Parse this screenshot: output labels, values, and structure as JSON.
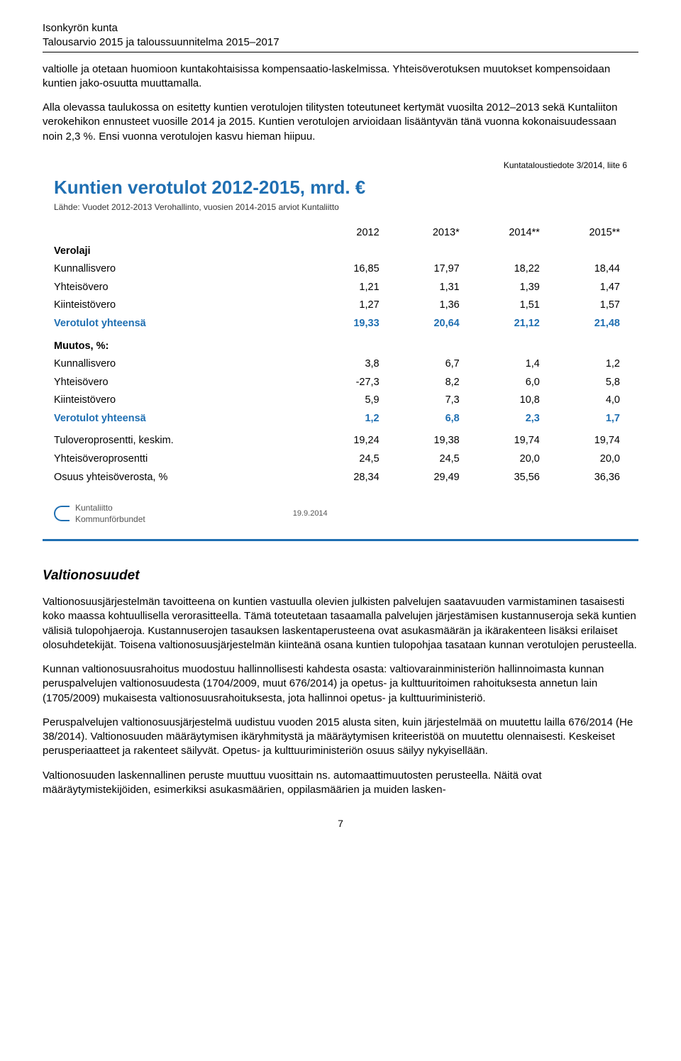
{
  "header": {
    "org": "Isonkyrön kunta",
    "doc": "Talousarvio 2015 ja taloussuunnitelma 2015–2017"
  },
  "paragraphs": {
    "p1": "valtiolle ja otetaan huomioon kuntakohtaisissa kompensaatio-laskelmissa. Yhteisöverotuksen muutokset kompensoidaan kuntien jako-osuutta muuttamalla.",
    "p2": "Alla olevassa taulukossa on esitetty kuntien verotulojen tilitysten toteutuneet kertymät vuosilta 2012–2013 sekä Kuntaliiton verokehikon ennusteet vuosille 2014 ja 2015. Kuntien verotulojen arvioidaan lisääntyvän tänä vuonna kokonaisuudessaan noin 2,3 %. Ensi vuonna verotulojen kasvu hieman hiipuu."
  },
  "table": {
    "liite": "Kuntataloustiedote 3/2014, liite 6",
    "title": "Kuntien verotulot 2012-2015, mrd. €",
    "subtitle": "Lähde: Vuodet 2012-2013 Verohallinto, vuosien 2014-2015 arviot Kuntaliitto",
    "title_color": "#1f6fb2",
    "accent_color": "#1f6fb2",
    "columns": [
      "",
      "2012",
      "2013*",
      "2014**",
      "2015**"
    ],
    "col_widths": [
      "44%",
      "14%",
      "14%",
      "14%",
      "14%"
    ],
    "rows": [
      {
        "cells": [
          "Verolaji",
          "",
          "",
          "",
          ""
        ],
        "style": "bold-black"
      },
      {
        "cells": [
          "Kunnallisvero",
          "16,85",
          "17,97",
          "18,22",
          "18,44"
        ]
      },
      {
        "cells": [
          "Yhteisövero",
          "1,21",
          "1,31",
          "1,39",
          "1,47"
        ]
      },
      {
        "cells": [
          "Kiinteistövero",
          "1,27",
          "1,36",
          "1,51",
          "1,57"
        ]
      },
      {
        "cells": [
          "Verotulot yhteensä",
          "19,33",
          "20,64",
          "21,12",
          "21,48"
        ],
        "style": "bold-blue"
      },
      {
        "cells": [
          "",
          "",
          "",
          "",
          ""
        ]
      },
      {
        "cells": [
          "Muutos, %:",
          "",
          "",
          "",
          ""
        ],
        "style": "bold-black"
      },
      {
        "cells": [
          "Kunnallisvero",
          "3,8",
          "6,7",
          "1,4",
          "1,2"
        ]
      },
      {
        "cells": [
          "Yhteisövero",
          "-27,3",
          "8,2",
          "6,0",
          "5,8"
        ]
      },
      {
        "cells": [
          "Kiinteistövero",
          "5,9",
          "7,3",
          "10,8",
          "4,0"
        ]
      },
      {
        "cells": [
          "Verotulot yhteensä",
          "1,2",
          "6,8",
          "2,3",
          "1,7"
        ],
        "style": "bold-blue"
      },
      {
        "cells": [
          "",
          "",
          "",
          "",
          ""
        ]
      },
      {
        "cells": [
          "Tuloveroprosentti, keskim.",
          "19,24",
          "19,38",
          "19,74",
          "19,74"
        ]
      },
      {
        "cells": [
          "Yhteisöveroprosentti",
          "24,5",
          "24,5",
          "20,0",
          "20,0"
        ]
      },
      {
        "cells": [
          "Osuus yhteisöverosta, %",
          "28,34",
          "29,49",
          "35,56",
          "36,36"
        ]
      }
    ],
    "logo1": "Kuntaliitto",
    "logo2": "Kommunförbundet",
    "date": "19.9.2014"
  },
  "section_title": "Valtionosuudet",
  "body": {
    "b1": "Valtionosuusjärjestelmän tavoitteena on kuntien vastuulla olevien julkisten palvelujen saatavuuden varmistaminen tasaisesti koko maassa kohtuullisella verorasitteella. Tämä toteutetaan tasaamalla palvelujen järjestämisen kustannuseroja sekä kuntien välisiä tulopohjaeroja. Kustannuserojen tasauksen laskentaperusteena ovat asukasmäärän ja ikärakenteen lisäksi erilaiset olosuhdetekijät. Toisena valtionosuusjärjestelmän kiinteänä osana kuntien tulopohjaa tasataan kunnan verotulojen perusteella.",
    "b2": "Kunnan valtionosuusrahoitus muodostuu hallinnollisesti kahdesta osasta: valtiovarainministeriön hallinnoimasta kunnan peruspalvelujen valtionosuudesta (1704/2009, muut 676/2014) ja opetus- ja kulttuuritoimen rahoituksesta annetun lain (1705/2009) mukaisesta valtionosuusrahoituksesta, jota hallinnoi opetus- ja kulttuuriministeriö.",
    "b3": "Peruspalvelujen valtionosuusjärjestelmä uudistuu vuoden 2015 alusta siten, kuin järjestelmää on muutettu lailla 676/2014 (He 38/2014). Valtionosuuden määräytymisen ikäryhmitystä ja määräytymisen kriteeristöä on muutettu olennaisesti. Keskeiset perusperiaatteet ja rakenteet säilyvät. Opetus- ja kulttuuriministeriön osuus säilyy nykyisellään.",
    "b4": "Valtionosuuden laskennallinen peruste muuttuu vuosittain ns. automaattimuutosten perusteella. Näitä ovat määräytymistekijöiden, esimerkiksi asukasmäärien, oppilasmäärien ja muiden lasken-"
  },
  "page_number": "7"
}
